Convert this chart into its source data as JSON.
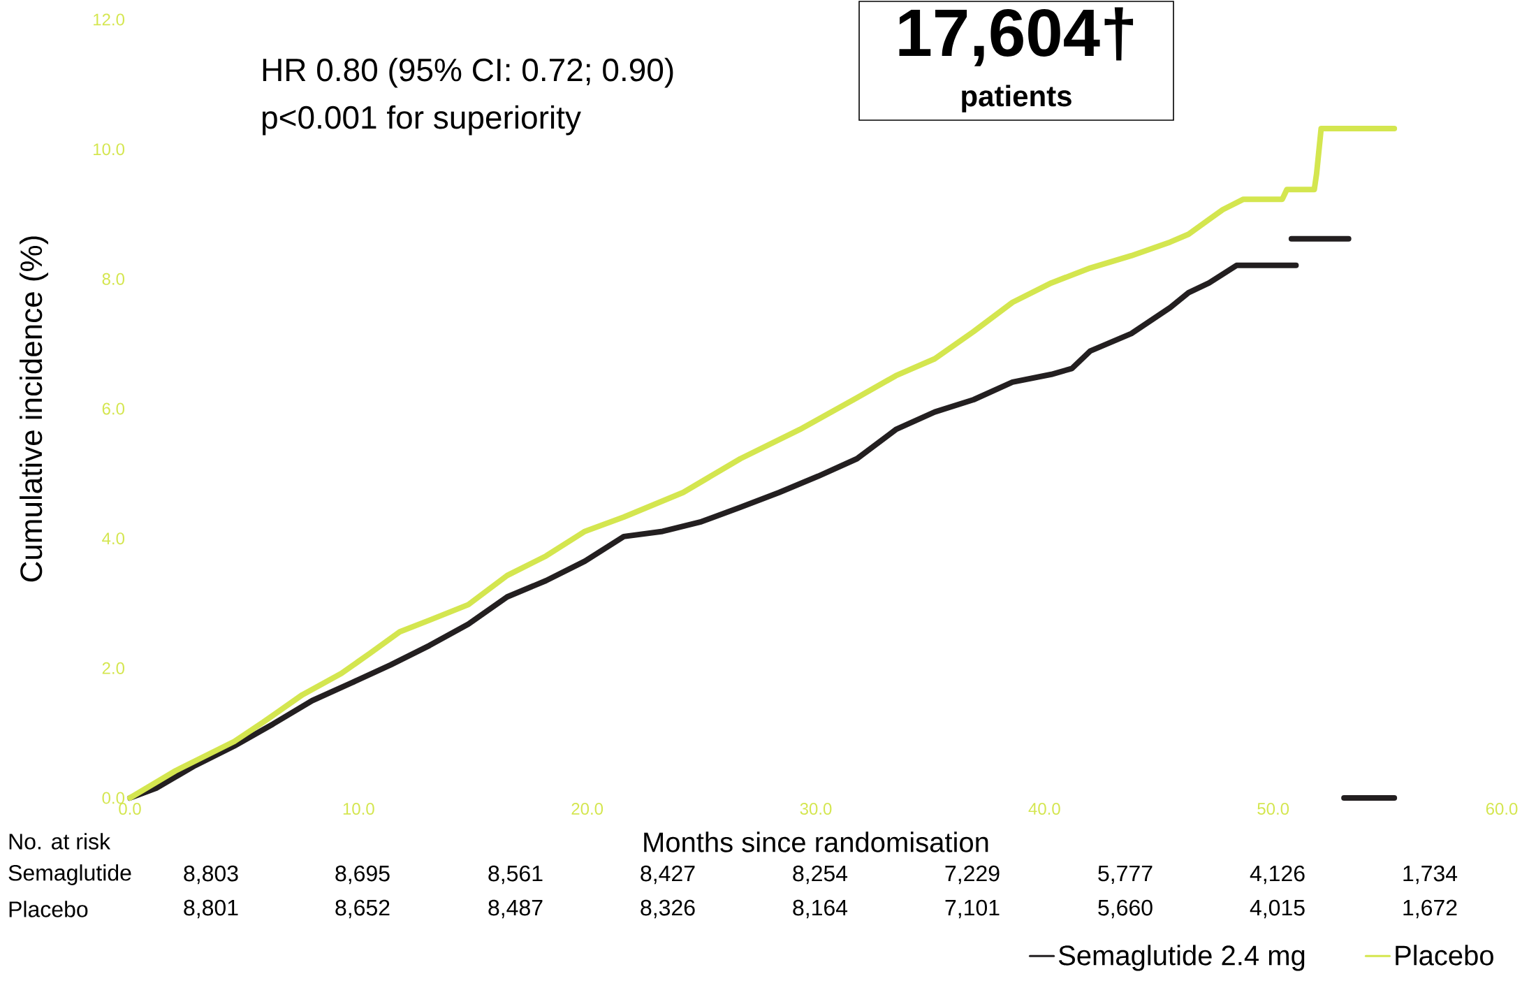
{
  "chart_data": {
    "type": "line",
    "xlabel": "Months since randomisation",
    "ylabel": "Cumulative incidence (%)",
    "xlim": [
      0,
      60
    ],
    "ylim": [
      0,
      12
    ],
    "xticks": [
      {
        "value": 0,
        "label": "0.0"
      },
      {
        "value": 10,
        "label": "10.0"
      },
      {
        "value": 20,
        "label": "20.0"
      },
      {
        "value": 30,
        "label": "30.0"
      },
      {
        "value": 40,
        "label": "40.0"
      },
      {
        "value": 50,
        "label": "50.0"
      },
      {
        "value": 60,
        "label": "60.0"
      }
    ],
    "yticks": [
      {
        "value": 0,
        "label": "0.0"
      },
      {
        "value": 2,
        "label": "2.0"
      },
      {
        "value": 4,
        "label": "4.0"
      },
      {
        "value": 6,
        "label": "6.0"
      },
      {
        "value": 8,
        "label": "8.0"
      },
      {
        "value": 10,
        "label": "10.0"
      },
      {
        "value": 12,
        "label": "12.0"
      }
    ],
    "legend": "bottom",
    "marker": "none",
    "line_style": "solid",
    "series": [
      {
        "name": "Semaglutide 2.4 mg",
        "color": "#231f20",
        "x": [
          0,
          1.15,
          2.85,
          4.56,
          6.26,
          7.97,
          9.67,
          11.4,
          13.1,
          14.8,
          16.5,
          18.2,
          19.9,
          21.6,
          23.3,
          25.0,
          26.7,
          28.4,
          30.1,
          31.8,
          33.5,
          35.2,
          36.9,
          38.6,
          40.3,
          41.2,
          42.0,
          43.8,
          45.5,
          46.3,
          47.2,
          48.4,
          51.0
        ],
        "values": [
          0,
          0.15,
          0.5,
          0.8,
          1.14,
          1.5,
          1.77,
          2.05,
          2.35,
          2.68,
          3.1,
          3.35,
          3.65,
          4.03,
          4.11,
          4.26,
          4.48,
          4.71,
          4.96,
          5.23,
          5.68,
          5.95,
          6.14,
          6.41,
          6.53,
          6.62,
          6.89,
          7.16,
          7.56,
          7.79,
          7.94,
          8.21,
          8.21
        ]
      },
      {
        "color": "#231f20",
        "x": [
          50.8,
          53.3
        ],
        "values": [
          8.62,
          8.62
        ]
      },
      {
        "color": "#231f20",
        "x": [
          53.1,
          55.3
        ],
        "values": [
          0,
          0
        ]
      },
      {
        "name": "Placebo",
        "color": "#d4e64f",
        "x": [
          0,
          2.0,
          4.56,
          5.84,
          7.54,
          9.25,
          10.5,
          11.8,
          13.1,
          14.8,
          16.5,
          18.2,
          19.9,
          21.6,
          24.2,
          26.7,
          29.3,
          31.8,
          33.5,
          35.2,
          36.9,
          38.6,
          40.3,
          42.0,
          43.8,
          45.5,
          46.3,
          47.2,
          47.8,
          48.7,
          50.4,
          50.6,
          51.8,
          51.9,
          52.1,
          55.3
        ],
        "values": [
          0,
          0.42,
          0.87,
          1.17,
          1.59,
          1.92,
          2.23,
          2.56,
          2.74,
          2.98,
          3.43,
          3.73,
          4.11,
          4.33,
          4.71,
          5.23,
          5.68,
          6.17,
          6.51,
          6.77,
          7.19,
          7.64,
          7.94,
          8.17,
          8.36,
          8.57,
          8.69,
          8.92,
          9.07,
          9.23,
          9.23,
          9.38,
          9.38,
          9.62,
          10.32,
          10.32
        ]
      }
    ],
    "annotations": [
      "HR 0.80 (95% CI: 0.72; 0.90)",
      "p<0.001 for superiority",
      "17,604†",
      "patients",
      "No. at risk",
      "Semaglutide",
      "8,803",
      "8,695",
      "8,561",
      "8,427",
      "8,254",
      "7,229",
      "5,777",
      "4,126",
      "1,734",
      "Placebo",
      "8,801",
      "8,652",
      "8,487",
      "8,326",
      "8,164",
      "7,101",
      "5,660",
      "4,015",
      "1,672"
    ]
  }
}
